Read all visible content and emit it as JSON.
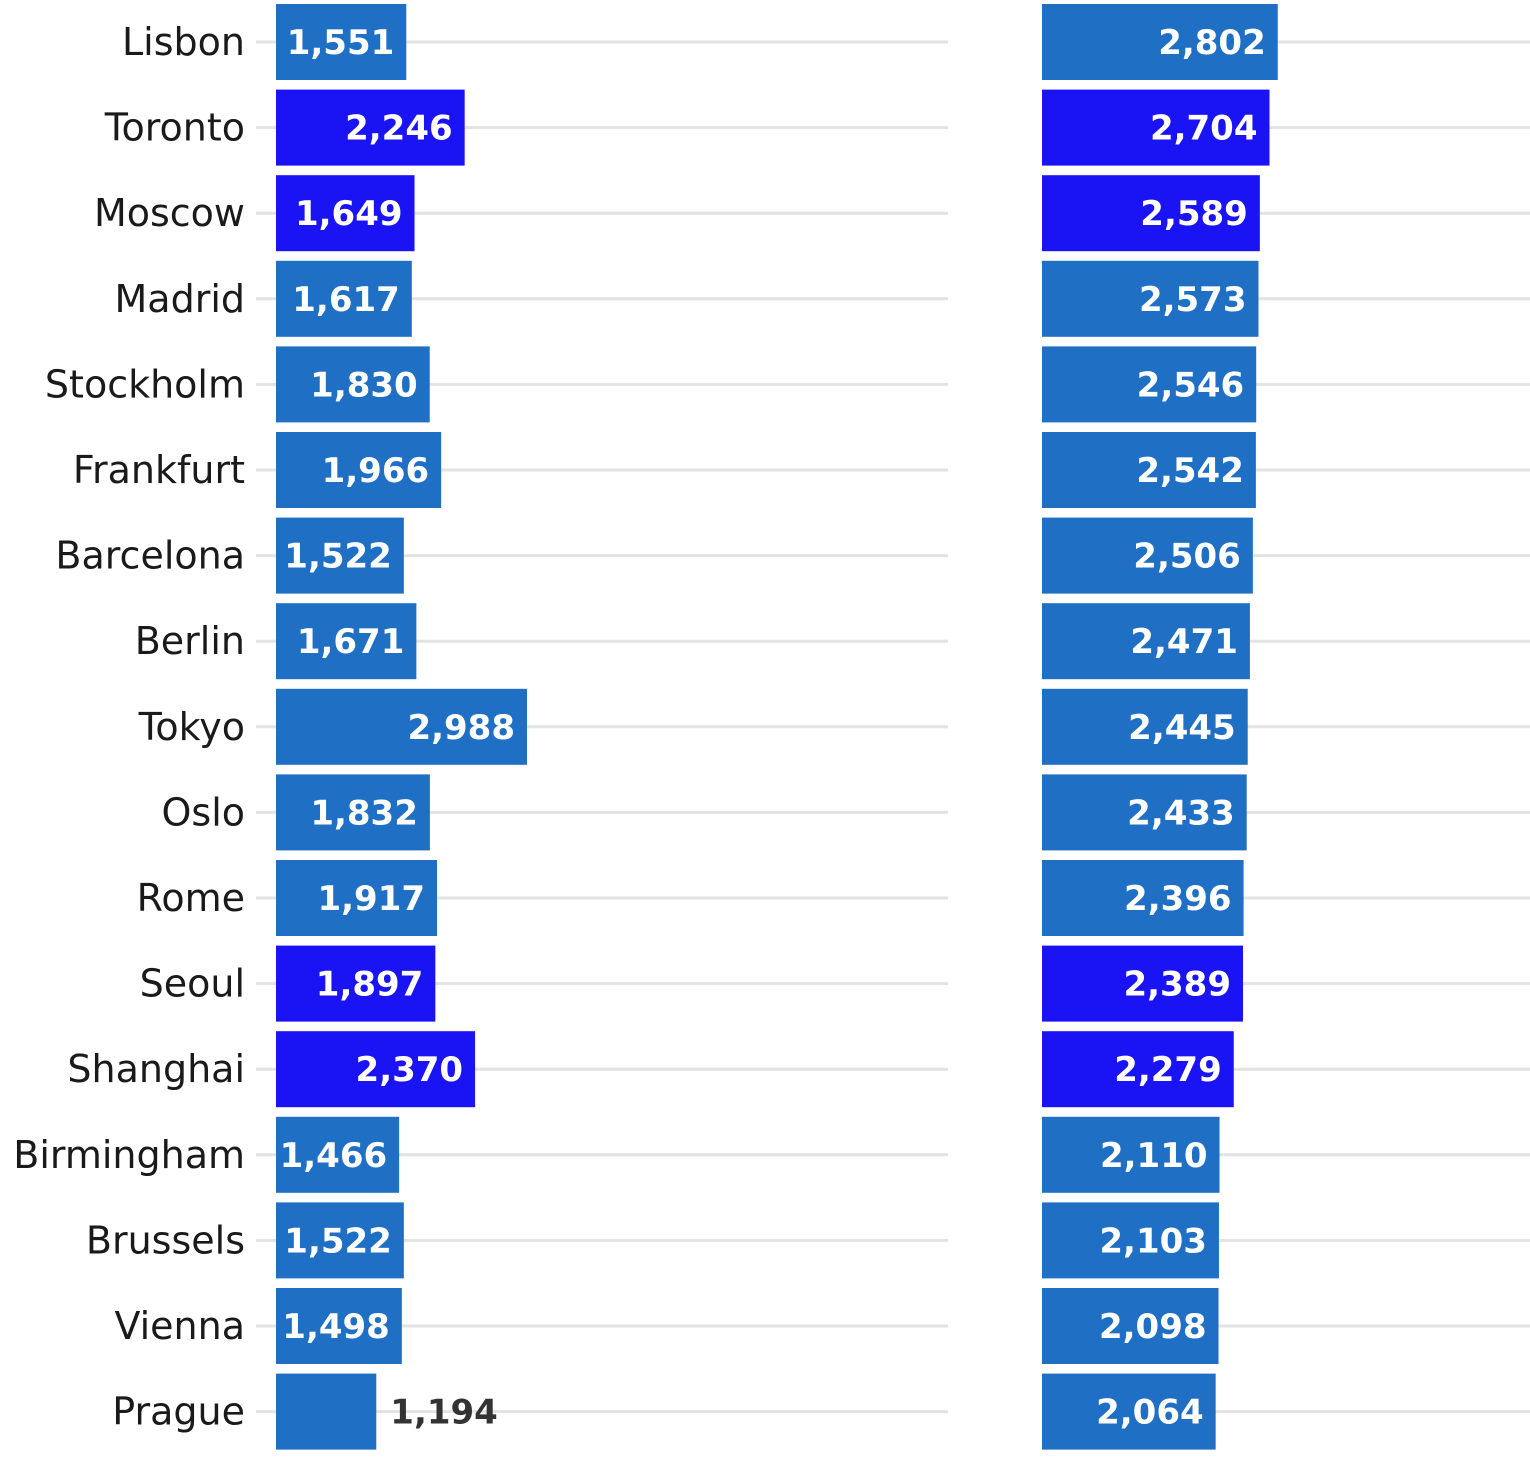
{
  "chart_data": [
    {
      "type": "bar",
      "orientation": "horizontal",
      "categories": [
        "Lisbon",
        "Toronto",
        "Moscow",
        "Madrid",
        "Stockholm",
        "Frankfurt",
        "Barcelona",
        "Berlin",
        "Tokyo",
        "Oslo",
        "Rome",
        "Seoul",
        "Shanghai",
        "Birmingham",
        "Brussels",
        "Vienna",
        "Prague"
      ],
      "values": [
        1551,
        2246,
        1649,
        1617,
        1830,
        1966,
        1522,
        1671,
        2988,
        1832,
        1917,
        1897,
        2370,
        1466,
        1522,
        1498,
        1194
      ],
      "value_labels": [
        "1,551",
        "2,246",
        "1,649",
        "1,617",
        "1,830",
        "1,966",
        "1,522",
        "1,671",
        "2,988",
        "1,832",
        "1,917",
        "1,897",
        "2,370",
        "1,466",
        "1,522",
        "1,498",
        "1,194"
      ],
      "xlim": [
        0,
        8000
      ],
      "grid": true
    },
    {
      "type": "bar",
      "orientation": "horizontal",
      "categories": [
        "Lisbon",
        "Toronto",
        "Moscow",
        "Madrid",
        "Stockholm",
        "Frankfurt",
        "Barcelona",
        "Berlin",
        "Tokyo",
        "Oslo",
        "Rome",
        "Seoul",
        "Shanghai",
        "Birmingham",
        "Brussels",
        "Vienna",
        "Prague"
      ],
      "values": [
        2802,
        2704,
        2589,
        2573,
        2546,
        2542,
        2506,
        2471,
        2445,
        2433,
        2396,
        2389,
        2279,
        2110,
        2103,
        2098,
        2064
      ],
      "value_labels": [
        "2,802",
        "2,704",
        "2,589",
        "2,573",
        "2,546",
        "2,542",
        "2,506",
        "2,471",
        "2,445",
        "2,433",
        "2,396",
        "2,389",
        "2,279",
        "2,110",
        "2,103",
        "2,098",
        "2,064"
      ],
      "xlim": [
        0,
        5800
      ],
      "grid": true
    }
  ],
  "highlighted_categories": [
    "Toronto",
    "Moscow",
    "Seoul",
    "Shanghai"
  ],
  "colors": {
    "bar": "#1f6fc5",
    "bar_highlight": "#1a14f5",
    "grid": "#e3e3e3",
    "label_inside": "#ffffff",
    "label_outside": "#333333"
  }
}
